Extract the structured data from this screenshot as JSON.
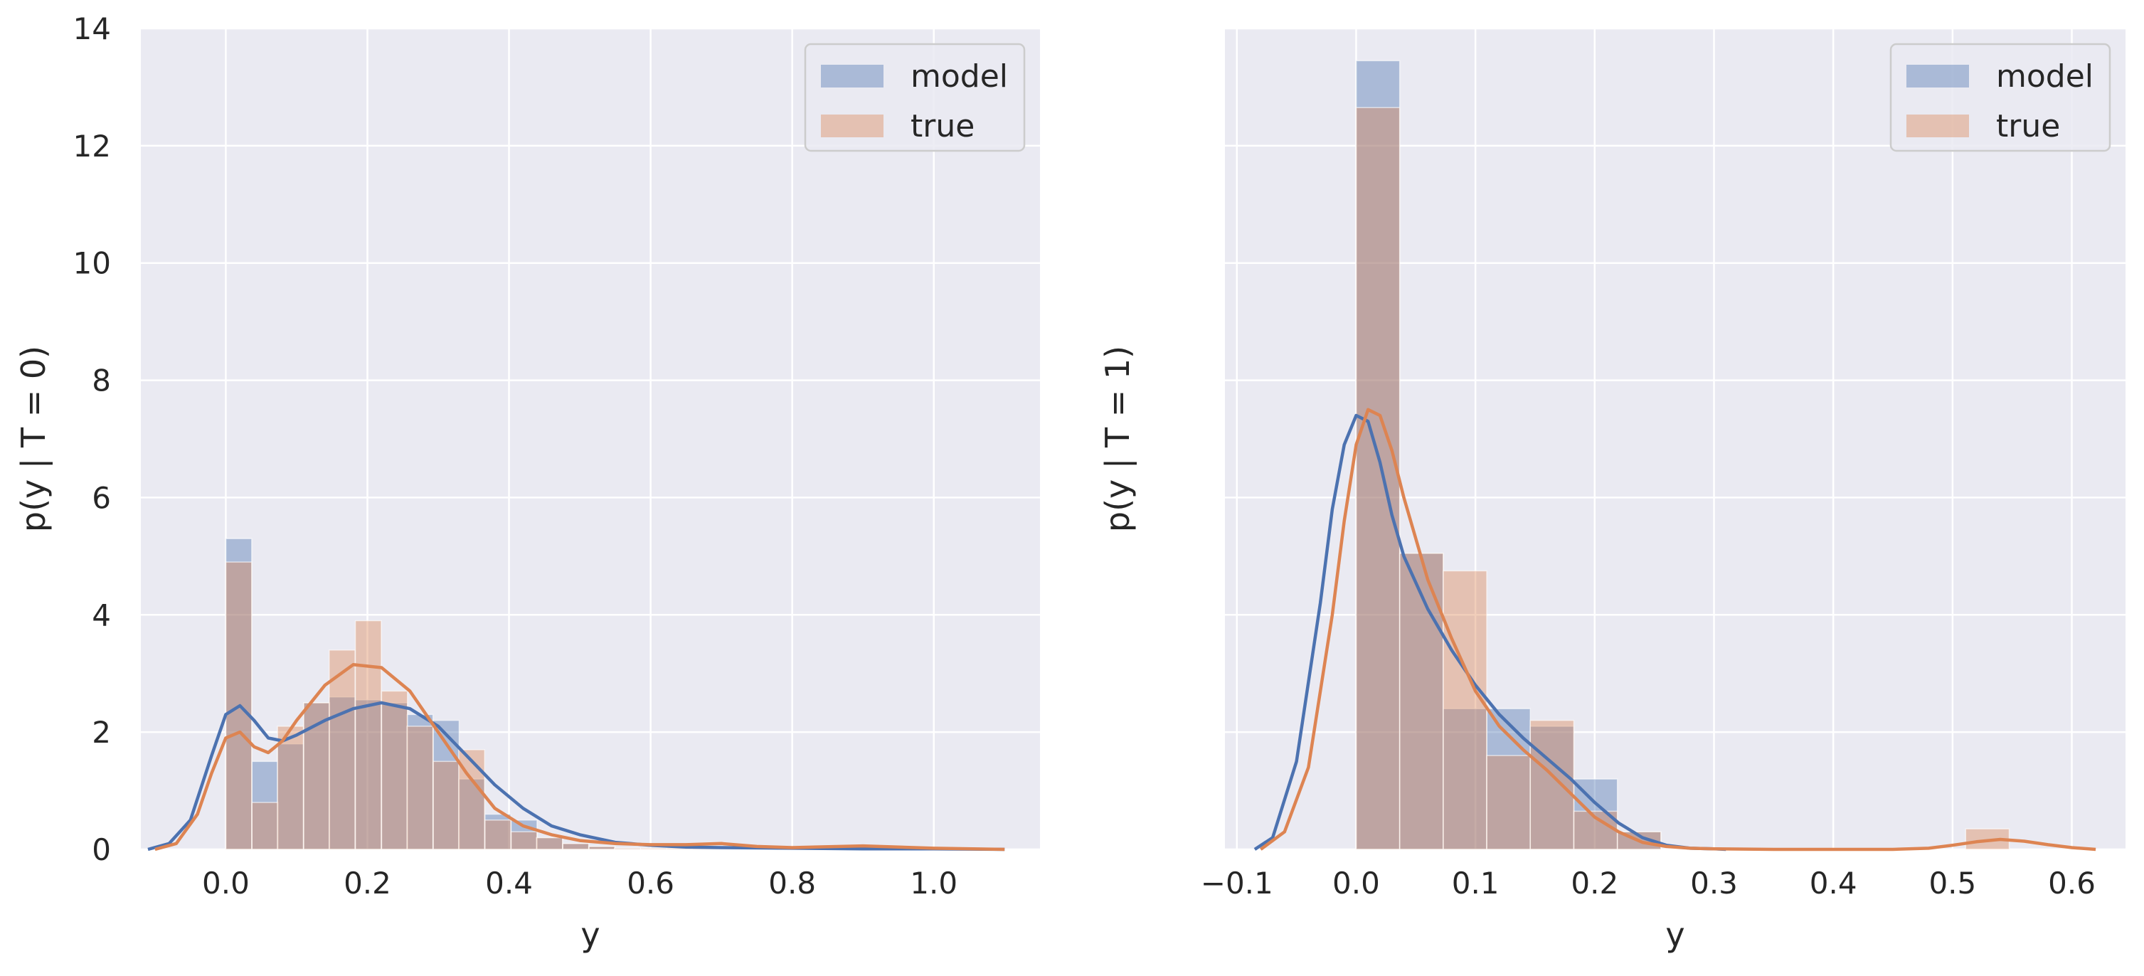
{
  "colors": {
    "background": "#eaeaf2",
    "grid": "#ffffff",
    "model": "#4c72b0",
    "true": "#dd8452",
    "text": "#262626"
  },
  "chart_data": [
    {
      "type": "bar",
      "xlabel": "y",
      "ylabel": "p(y | T = 0)",
      "xlim": [
        -0.12,
        1.15
      ],
      "ylim": [
        0,
        14
      ],
      "xticks": [
        0.0,
        0.2,
        0.4,
        0.6,
        0.8,
        1.0
      ],
      "xtick_labels": [
        "0.0",
        "0.2",
        "0.4",
        "0.6",
        "0.8",
        "1.0"
      ],
      "yticks": [
        0,
        2,
        4,
        6,
        8,
        10,
        12,
        14
      ],
      "ytick_labels": [
        "0",
        "2",
        "4",
        "6",
        "8",
        "10",
        "12",
        "14"
      ],
      "grid": true,
      "legend_position": "top-right",
      "legend": [
        "model",
        "true"
      ],
      "series": [
        {
          "name": "model",
          "kind": "histogram",
          "bin_width": 0.0366,
          "bin_starts": [
            0.0,
            0.037,
            0.073,
            0.11,
            0.146,
            0.183,
            0.22,
            0.256,
            0.293,
            0.329,
            0.366,
            0.403,
            0.439,
            0.476,
            0.513,
            0.549
          ],
          "values": [
            5.3,
            1.5,
            1.8,
            2.5,
            2.6,
            2.55,
            2.5,
            2.3,
            2.2,
            1.2,
            0.6,
            0.5,
            0.2,
            0.1,
            0.05,
            0.02
          ]
        },
        {
          "name": "true",
          "kind": "histogram",
          "bin_width": 0.0366,
          "bin_starts": [
            0.0,
            0.037,
            0.073,
            0.11,
            0.146,
            0.183,
            0.22,
            0.256,
            0.293,
            0.329,
            0.366,
            0.403,
            0.439,
            0.476,
            0.513,
            0.549,
            0.586,
            0.623,
            0.659,
            0.696
          ],
          "values": [
            4.9,
            0.8,
            2.1,
            2.5,
            3.4,
            3.9,
            2.7,
            2.1,
            1.5,
            1.7,
            0.5,
            0.3,
            0.2,
            0.1,
            0.05,
            0.02,
            0.02,
            0.02,
            0.05,
            0.02
          ]
        },
        {
          "name": "model",
          "kind": "kde",
          "x": [
            -0.11,
            -0.08,
            -0.05,
            -0.02,
            0.0,
            0.02,
            0.04,
            0.06,
            0.08,
            0.1,
            0.14,
            0.18,
            0.22,
            0.26,
            0.3,
            0.34,
            0.38,
            0.42,
            0.46,
            0.5,
            0.55,
            0.6,
            0.65,
            0.7,
            0.8,
            0.9,
            1.0,
            1.1
          ],
          "y": [
            0.0,
            0.1,
            0.5,
            1.6,
            2.3,
            2.45,
            2.2,
            1.9,
            1.85,
            1.95,
            2.2,
            2.4,
            2.5,
            2.4,
            2.1,
            1.6,
            1.1,
            0.7,
            0.4,
            0.25,
            0.12,
            0.07,
            0.04,
            0.03,
            0.02,
            0.01,
            0.01,
            0.0
          ]
        },
        {
          "name": "true",
          "kind": "kde",
          "x": [
            -0.1,
            -0.07,
            -0.04,
            -0.02,
            0.0,
            0.02,
            0.04,
            0.06,
            0.08,
            0.1,
            0.14,
            0.18,
            0.22,
            0.26,
            0.3,
            0.34,
            0.38,
            0.42,
            0.46,
            0.5,
            0.55,
            0.6,
            0.65,
            0.7,
            0.75,
            0.8,
            0.9,
            1.0,
            1.1
          ],
          "y": [
            0.0,
            0.1,
            0.6,
            1.3,
            1.9,
            2.0,
            1.75,
            1.65,
            1.85,
            2.2,
            2.8,
            3.15,
            3.1,
            2.7,
            2.0,
            1.3,
            0.7,
            0.4,
            0.25,
            0.15,
            0.1,
            0.08,
            0.08,
            0.1,
            0.05,
            0.03,
            0.06,
            0.02,
            0.0
          ]
        }
      ]
    },
    {
      "type": "bar",
      "xlabel": "y",
      "ylabel": "p(y | T = 1)",
      "xlim": [
        -0.11,
        0.645
      ],
      "ylim": [
        0,
        14
      ],
      "xticks": [
        -0.1,
        0.0,
        0.1,
        0.2,
        0.3,
        0.4,
        0.5,
        0.6
      ],
      "xtick_labels": [
        "−0.1",
        "0.0",
        "0.1",
        "0.2",
        "0.3",
        "0.4",
        "0.5",
        "0.6"
      ],
      "yticks": [
        0,
        2,
        4,
        6,
        8,
        10,
        12,
        14
      ],
      "ytick_labels": [],
      "grid": true,
      "legend_position": "top-right",
      "legend": [
        "model",
        "true"
      ],
      "series": [
        {
          "name": "model",
          "kind": "histogram",
          "bin_width": 0.0365,
          "bin_starts": [
            0.0,
            0.0365,
            0.073,
            0.1095,
            0.146,
            0.1825,
            0.219
          ],
          "values": [
            13.45,
            5.05,
            2.4,
            2.4,
            2.1,
            1.2,
            0.3
          ]
        },
        {
          "name": "true",
          "kind": "histogram",
          "bin_width": 0.0365,
          "bin_starts": [
            0.0,
            0.0365,
            0.073,
            0.1095,
            0.146,
            0.1825,
            0.219,
            0.511
          ],
          "values": [
            12.65,
            5.05,
            4.75,
            1.6,
            2.2,
            0.65,
            0.3,
            0.35
          ]
        },
        {
          "name": "model",
          "kind": "kde",
          "x": [
            -0.085,
            -0.07,
            -0.05,
            -0.03,
            -0.02,
            -0.01,
            0.0,
            0.01,
            0.02,
            0.03,
            0.04,
            0.06,
            0.08,
            0.1,
            0.12,
            0.14,
            0.16,
            0.18,
            0.2,
            0.22,
            0.24,
            0.26,
            0.28,
            0.3,
            0.31
          ],
          "y": [
            0.0,
            0.2,
            1.5,
            4.2,
            5.8,
            6.9,
            7.4,
            7.3,
            6.6,
            5.7,
            5.0,
            4.1,
            3.4,
            2.8,
            2.3,
            1.9,
            1.55,
            1.2,
            0.8,
            0.45,
            0.2,
            0.07,
            0.02,
            0.01,
            0.0
          ]
        },
        {
          "name": "true",
          "kind": "kde",
          "x": [
            -0.08,
            -0.06,
            -0.04,
            -0.02,
            -0.01,
            0.0,
            0.01,
            0.02,
            0.03,
            0.04,
            0.06,
            0.08,
            0.1,
            0.12,
            0.14,
            0.16,
            0.18,
            0.2,
            0.22,
            0.24,
            0.26,
            0.28,
            0.3,
            0.35,
            0.4,
            0.45,
            0.48,
            0.5,
            0.52,
            0.54,
            0.56,
            0.58,
            0.6,
            0.62
          ],
          "y": [
            0.0,
            0.3,
            1.4,
            4.0,
            5.6,
            6.9,
            7.5,
            7.4,
            6.8,
            6.0,
            4.6,
            3.6,
            2.7,
            2.1,
            1.7,
            1.35,
            0.95,
            0.55,
            0.3,
            0.12,
            0.05,
            0.02,
            0.01,
            0.0,
            0.0,
            0.0,
            0.02,
            0.07,
            0.13,
            0.17,
            0.14,
            0.08,
            0.03,
            0.0
          ]
        }
      ]
    }
  ]
}
